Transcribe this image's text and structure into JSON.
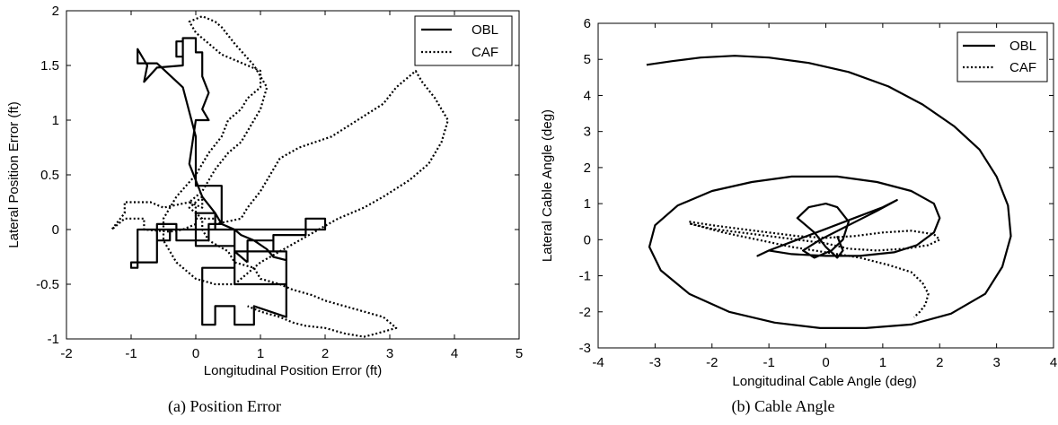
{
  "chart_data": [
    {
      "type": "line",
      "caption": "(a) Position Error",
      "xlabel": "Longitudinal Position Error (ft)",
      "ylabel": "Lateral Position Error (ft)",
      "xlim": [
        -2,
        5
      ],
      "ylim": [
        -1,
        2
      ],
      "xticks": [
        "-2",
        "-1",
        "0",
        "1",
        "2",
        "3",
        "4",
        "5"
      ],
      "yticks": [
        "-1",
        "-0.5",
        "0",
        "0.5",
        "1",
        "1.5",
        "2"
      ],
      "legend_position": "top-right",
      "series": [
        {
          "name": "OBL",
          "style": "solid",
          "x": [
            0.8,
            0.8,
            1.2,
            1.2,
            1.4,
            1.4,
            0.9,
            0.9,
            0.6,
            0.6,
            0.3,
            0.3,
            0.1,
            0.1,
            0.6,
            0.6,
            1.2,
            1.2,
            1.7,
            1.7,
            2.0,
            2.0,
            -0.6,
            -0.6,
            -0.4,
            -0.4,
            -0.9,
            -0.9,
            -1.0,
            -1.0,
            -0.6,
            -0.6,
            -0.3,
            -0.3,
            0.2,
            0.2,
            0.4,
            0.4,
            0.0,
            0.0,
            -0.2,
            -0.6,
            -0.9,
            -0.9,
            -0.75,
            -0.8,
            -0.6,
            -0.2,
            -0.2,
            -0.3,
            -0.3,
            -0.2,
            -0.2,
            0.0,
            0.0,
            0.1,
            0.1,
            0.2,
            0.1,
            0.2,
            0.0,
            -0.1,
            0.0,
            0.1,
            0.3,
            0.4,
            0.6,
            0.7,
            0.9,
            1.1,
            1.2,
            1.4,
            1.4,
            0.6,
            0.6,
            0.0,
            0.0,
            0.3,
            0.3,
            0.6,
            0.6,
            0.8
          ],
          "y": [
            -0.3,
            -0.1,
            -0.1,
            -0.2,
            -0.2,
            -0.8,
            -0.7,
            -0.87,
            -0.87,
            -0.7,
            -0.7,
            -0.87,
            -0.87,
            -0.35,
            -0.35,
            -0.2,
            -0.2,
            -0.05,
            -0.05,
            0.1,
            0.1,
            0.0,
            0.0,
            -0.1,
            -0.1,
            0.0,
            0.0,
            -0.35,
            -0.35,
            -0.3,
            -0.3,
            0.05,
            0.05,
            -0.1,
            -0.1,
            0.05,
            0.05,
            0.4,
            0.4,
            0.85,
            1.3,
            1.52,
            1.52,
            1.65,
            1.5,
            1.35,
            1.48,
            1.5,
            1.72,
            1.72,
            1.58,
            1.58,
            1.75,
            1.75,
            1.62,
            1.62,
            1.4,
            1.25,
            1.1,
            1.0,
            1.0,
            0.6,
            0.45,
            0.3,
            0.15,
            0.05,
            0.0,
            -0.05,
            -0.1,
            -0.18,
            -0.25,
            -0.28,
            -0.5,
            -0.5,
            -0.15,
            -0.15,
            0.15,
            0.15,
            0.0,
            0.0,
            -0.2,
            -0.3
          ]
        },
        {
          "name": "CAF",
          "style": "dotted",
          "x": [
            0.0,
            -0.2,
            -0.4,
            -0.8,
            -0.8,
            -1.1,
            -1.2,
            -1.3,
            -1.1,
            -1.1,
            -0.7,
            -0.5,
            -0.1,
            0.0,
            0.0,
            0.3,
            0.3,
            0.7,
            0.8,
            1.0,
            1.1,
            1.2,
            1.3,
            1.6,
            2.1,
            2.5,
            2.9,
            3.1,
            3.3,
            3.4,
            3.5,
            3.7,
            3.9,
            3.8,
            3.6,
            3.3,
            2.9,
            2.6,
            2.2,
            1.9,
            1.6,
            1.3,
            1.0,
            0.8,
            0.6,
            0.3,
            0.0,
            -0.3,
            -0.5,
            -0.5,
            -0.3,
            0.0,
            0.2,
            0.4,
            0.5,
            0.7,
            0.8,
            1.0,
            1.0,
            0.8,
            0.6,
            0.4,
            0.2,
            0.0,
            -0.1,
            0.1,
            0.3,
            0.4,
            0.6,
            0.9,
            1.1,
            1.0,
            0.8,
            0.7,
            0.5,
            0.3,
            0.2,
            0.1,
            0.0,
            -0.1,
            0.1,
            0.1,
            0.0,
            -0.1,
            0.1,
            0.1,
            0.2,
            0.5,
            0.6,
            0.9,
            1.0,
            1.3,
            1.5,
            1.8,
            2.0,
            2.3,
            2.6,
            2.9,
            3.0,
            3.1,
            2.8,
            2.6,
            2.3,
            2.0,
            1.7,
            1.5,
            1.3,
            1.0,
            0.8
          ],
          "y": [
            0.05,
            0.0,
            -0.02,
            0.0,
            0.1,
            0.1,
            0.05,
            0.0,
            0.15,
            0.25,
            0.25,
            0.2,
            0.25,
            0.2,
            0.1,
            0.1,
            0.05,
            0.1,
            0.2,
            0.35,
            0.45,
            0.55,
            0.65,
            0.75,
            0.85,
            1.0,
            1.15,
            1.3,
            1.4,
            1.45,
            1.35,
            1.2,
            1.0,
            0.8,
            0.6,
            0.45,
            0.3,
            0.2,
            0.1,
            0.0,
            -0.1,
            -0.2,
            -0.3,
            -0.4,
            -0.5,
            -0.5,
            -0.45,
            -0.3,
            -0.1,
            0.1,
            0.3,
            0.5,
            0.7,
            0.85,
            1.0,
            1.1,
            1.2,
            1.3,
            1.45,
            1.5,
            1.55,
            1.6,
            1.7,
            1.8,
            1.9,
            1.95,
            1.9,
            1.85,
            1.7,
            1.5,
            1.3,
            1.1,
            0.9,
            0.8,
            0.7,
            0.55,
            0.45,
            0.35,
            0.3,
            0.25,
            0.2,
            0.3,
            0.25,
            0.2,
            0.1,
            0.0,
            -0.1,
            -0.2,
            -0.3,
            -0.35,
            -0.45,
            -0.5,
            -0.55,
            -0.6,
            -0.65,
            -0.7,
            -0.75,
            -0.8,
            -0.85,
            -0.9,
            -0.95,
            -0.98,
            -0.95,
            -0.9,
            -0.88,
            -0.85,
            -0.8,
            -0.75,
            -0.7
          ]
        }
      ]
    },
    {
      "type": "line",
      "caption": "(b) Cable Angle",
      "xlabel": "Longitudinal Cable Angle (deg)",
      "ylabel": "Lateral Cable Angle (deg)",
      "xlim": [
        -4,
        4
      ],
      "ylim": [
        -3,
        6
      ],
      "xticks": [
        "-4",
        "-3",
        "-2",
        "-1",
        "0",
        "1",
        "2",
        "3",
        "4"
      ],
      "yticks": [
        "-3",
        "-2",
        "-1",
        "0",
        "1",
        "2",
        "3",
        "4",
        "5",
        "6"
      ],
      "legend_position": "top-right",
      "series": [
        {
          "name": "OBL",
          "style": "solid",
          "x": [
            -3.15,
            -2.7,
            -2.2,
            -1.6,
            -1.0,
            -0.3,
            0.4,
            1.1,
            1.7,
            2.25,
            2.7,
            3.0,
            3.2,
            3.25,
            3.1,
            2.8,
            2.2,
            1.5,
            0.7,
            -0.1,
            -0.9,
            -1.7,
            -2.4,
            -2.9,
            -3.1,
            -3.0,
            -2.6,
            -2.0,
            -1.3,
            -0.6,
            0.2,
            0.9,
            1.5,
            1.9,
            2.0,
            1.9,
            1.6,
            1.2,
            0.6,
            0.0,
            -0.6,
            -1.0,
            -1.2,
            -1.0,
            -0.5,
            0.0,
            0.5,
            1.0,
            1.25,
            0.9,
            0.4,
            -0.1,
            -0.4,
            -0.2,
            0.1,
            0.3,
            0.4,
            0.2,
            0.0,
            -0.3,
            -0.5,
            -0.2,
            0.0,
            0.2,
            0.3,
            0.2
          ],
          "y": [
            4.85,
            4.95,
            5.05,
            5.1,
            5.05,
            4.9,
            4.65,
            4.25,
            3.75,
            3.15,
            2.5,
            1.75,
            0.95,
            0.1,
            -0.75,
            -1.5,
            -2.05,
            -2.35,
            -2.45,
            -2.45,
            -2.3,
            -2.0,
            -1.5,
            -0.85,
            -0.2,
            0.4,
            0.95,
            1.35,
            1.6,
            1.75,
            1.75,
            1.6,
            1.35,
            1.0,
            0.6,
            0.2,
            -0.15,
            -0.35,
            -0.45,
            -0.45,
            -0.4,
            -0.3,
            -0.45,
            -0.3,
            0.0,
            0.3,
            0.6,
            0.9,
            1.1,
            0.8,
            0.4,
            0.0,
            -0.3,
            -0.5,
            -0.3,
            0.0,
            0.5,
            0.9,
            1.0,
            0.9,
            0.6,
            0.2,
            -0.2,
            -0.5,
            -0.3,
            0.1
          ]
        },
        {
          "name": "CAF",
          "style": "dotted",
          "x": [
            -2.4,
            -2.0,
            -1.5,
            -1.0,
            -0.5,
            0.0,
            0.5,
            1.0,
            1.5,
            1.9,
            2.0,
            1.8,
            1.4,
            0.9,
            0.4,
            0.0,
            -0.5,
            -1.0,
            -1.5,
            -2.0,
            -2.4,
            -1.8,
            -1.2,
            -0.6,
            0.0,
            0.6,
            1.1,
            1.5,
            1.7,
            1.8,
            1.75,
            1.65,
            1.55
          ],
          "y": [
            0.5,
            0.4,
            0.3,
            0.2,
            0.1,
            0.05,
            0.1,
            0.2,
            0.25,
            0.15,
            0.0,
            -0.15,
            -0.25,
            -0.3,
            -0.25,
            -0.1,
            0.0,
            0.1,
            0.2,
            0.3,
            0.45,
            0.2,
            0.0,
            -0.2,
            -0.35,
            -0.5,
            -0.7,
            -0.9,
            -1.2,
            -1.5,
            -1.8,
            -2.0,
            -2.15
          ]
        }
      ]
    }
  ]
}
